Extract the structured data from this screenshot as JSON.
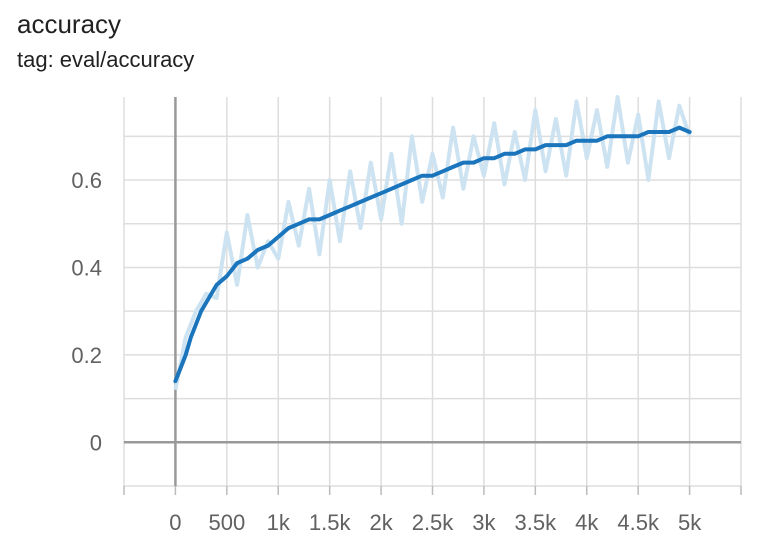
{
  "card": {
    "title": "accuracy",
    "subtitle": "tag: eval/accuracy"
  },
  "chart_data": {
    "type": "line",
    "title": "accuracy",
    "subtitle": "tag: eval/accuracy",
    "xlabel": "",
    "ylabel": "",
    "xlim": [
      -500,
      5500
    ],
    "ylim": [
      -0.1,
      0.79
    ],
    "x_ticks": [
      0,
      500,
      1000,
      1500,
      2000,
      2500,
      3000,
      3500,
      4000,
      4500,
      5000
    ],
    "x_tick_labels": [
      "0",
      "500",
      "1k",
      "1.5k",
      "2k",
      "2.5k",
      "3k",
      "3.5k",
      "4k",
      "4.5k",
      "5k"
    ],
    "y_ticks": [
      0,
      0.2,
      0.4,
      0.6
    ],
    "y_tick_labels": [
      "0",
      "0.2",
      "0.4",
      "0.6"
    ],
    "grid": true,
    "legend": "none",
    "colors": {
      "smoothed": "#1a75bc",
      "raw": "#cde3f1",
      "grid": "#dddddd",
      "zero_axis": "#999999"
    },
    "series": [
      {
        "role": "smoothed",
        "x": [
          0,
          50,
          100,
          150,
          200,
          250,
          300,
          400,
          500,
          600,
          700,
          800,
          900,
          1000,
          1100,
          1200,
          1300,
          1400,
          1500,
          1600,
          1700,
          1800,
          1900,
          2000,
          2100,
          2200,
          2300,
          2400,
          2500,
          2600,
          2700,
          2800,
          2900,
          3000,
          3100,
          3200,
          3300,
          3400,
          3500,
          3600,
          3700,
          3800,
          3900,
          4000,
          4100,
          4200,
          4300,
          4400,
          4500,
          4600,
          4700,
          4800,
          4900,
          5000
        ],
        "values": [
          0.14,
          0.17,
          0.2,
          0.24,
          0.27,
          0.3,
          0.32,
          0.36,
          0.38,
          0.41,
          0.42,
          0.44,
          0.45,
          0.47,
          0.49,
          0.5,
          0.51,
          0.51,
          0.52,
          0.53,
          0.54,
          0.55,
          0.56,
          0.57,
          0.58,
          0.59,
          0.6,
          0.61,
          0.61,
          0.62,
          0.63,
          0.64,
          0.64,
          0.65,
          0.65,
          0.66,
          0.66,
          0.67,
          0.67,
          0.68,
          0.68,
          0.68,
          0.69,
          0.69,
          0.69,
          0.7,
          0.7,
          0.7,
          0.7,
          0.71,
          0.71,
          0.71,
          0.72,
          0.71
        ]
      },
      {
        "role": "raw",
        "x": [
          0,
          100,
          200,
          300,
          400,
          500,
          600,
          700,
          800,
          900,
          1000,
          1100,
          1200,
          1300,
          1400,
          1500,
          1600,
          1700,
          1800,
          1900,
          2000,
          2100,
          2200,
          2300,
          2400,
          2500,
          2600,
          2700,
          2800,
          2900,
          3000,
          3100,
          3200,
          3300,
          3400,
          3500,
          3600,
          3700,
          3800,
          3900,
          4000,
          4100,
          4200,
          4300,
          4400,
          4500,
          4600,
          4700,
          4800,
          4900,
          5000
        ],
        "values": [
          0.12,
          0.24,
          0.3,
          0.34,
          0.33,
          0.48,
          0.36,
          0.52,
          0.4,
          0.46,
          0.42,
          0.55,
          0.45,
          0.58,
          0.43,
          0.6,
          0.46,
          0.62,
          0.49,
          0.64,
          0.51,
          0.66,
          0.5,
          0.7,
          0.55,
          0.66,
          0.56,
          0.72,
          0.58,
          0.7,
          0.61,
          0.73,
          0.59,
          0.71,
          0.6,
          0.76,
          0.62,
          0.74,
          0.61,
          0.78,
          0.65,
          0.76,
          0.63,
          0.79,
          0.64,
          0.75,
          0.6,
          0.78,
          0.65,
          0.77,
          0.7
        ]
      }
    ]
  }
}
